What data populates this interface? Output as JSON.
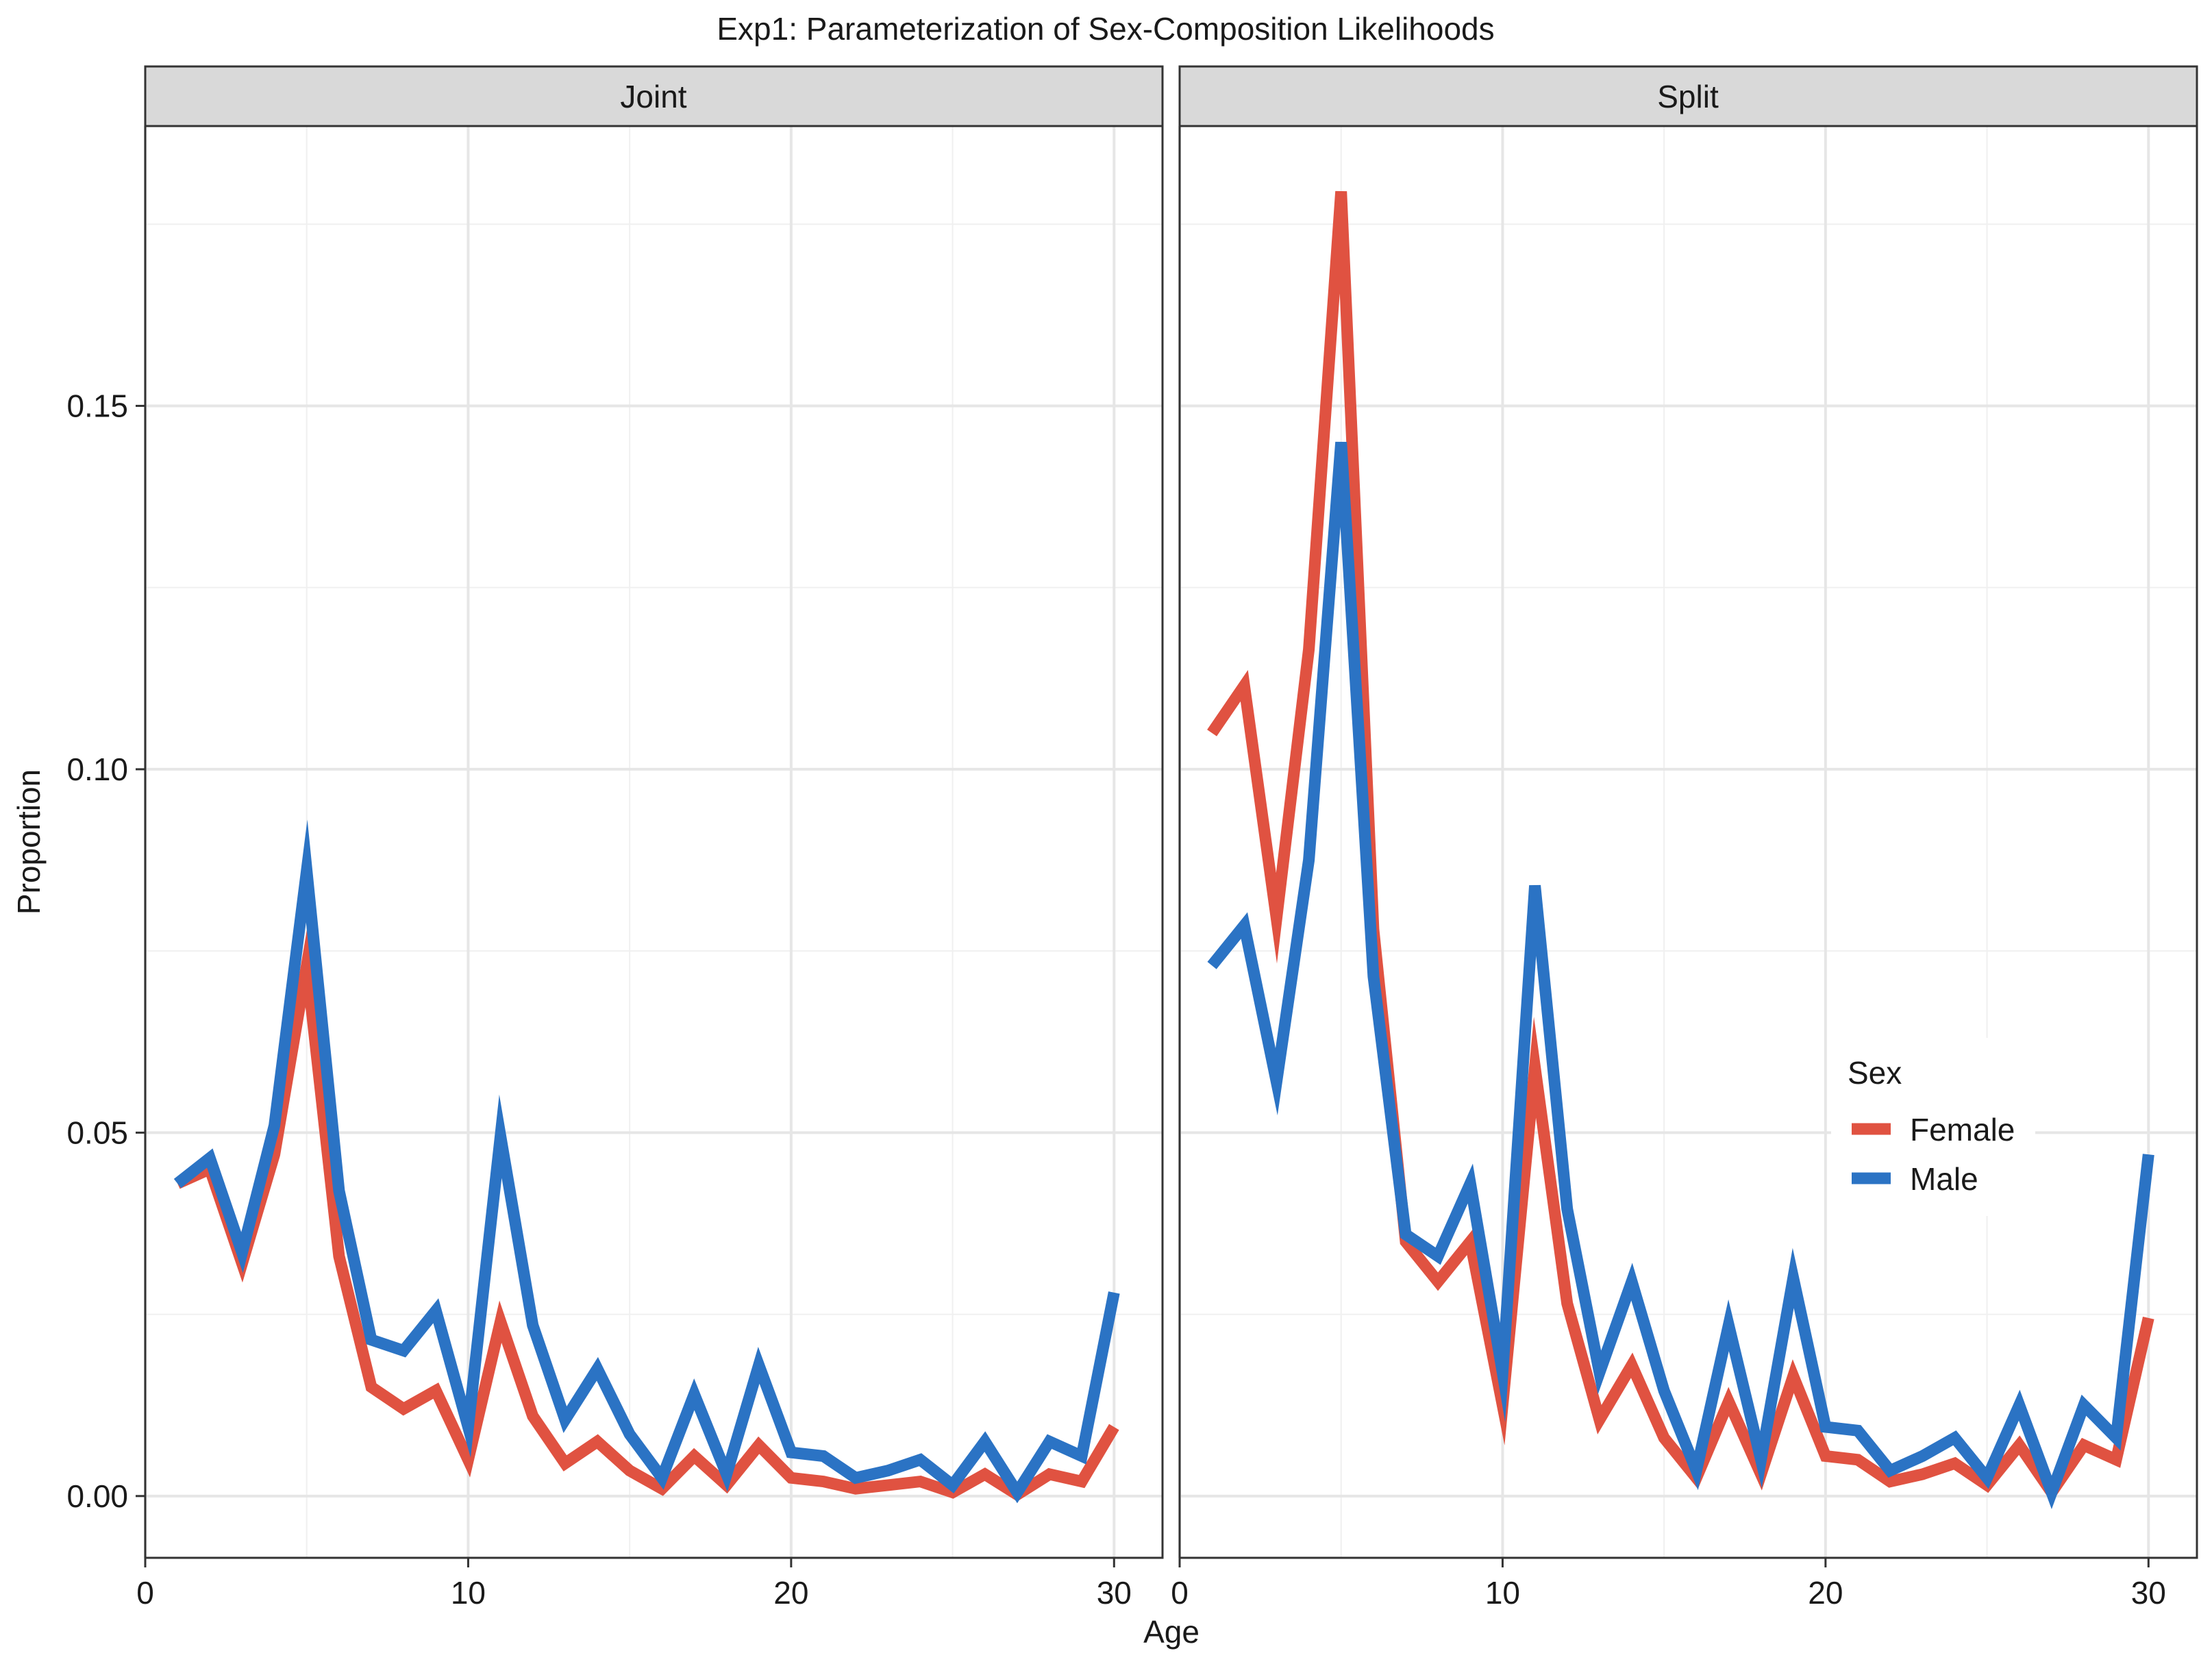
{
  "chart_data": {
    "type": "line",
    "title": "Exp1: Parameterization of Sex-Composition Likelihoods",
    "xlabel": "Age",
    "ylabel": "Proportion",
    "xlim": [
      0,
      31.5
    ],
    "ylim": [
      -0.0085,
      0.1885
    ],
    "x_ticks": [
      0,
      10,
      20,
      30
    ],
    "x_tick_labels": [
      "0",
      "10",
      "20",
      "30"
    ],
    "y_ticks": [
      0.0,
      0.05,
      0.1,
      0.15
    ],
    "y_tick_labels": [
      "0.00",
      "0.05",
      "0.10",
      "0.15"
    ],
    "grid": true,
    "legend": {
      "title": "Sex",
      "placement": "right, inside Split panel",
      "entries": [
        "Female",
        "Male"
      ]
    },
    "series_colors": {
      "Female": "#e05241",
      "Male": "#2b73c4"
    },
    "x": [
      1,
      2,
      3,
      4,
      5,
      6,
      7,
      8,
      9,
      10,
      11,
      12,
      13,
      14,
      15,
      16,
      17,
      18,
      19,
      20,
      21,
      22,
      23,
      24,
      25,
      26,
      27,
      28,
      29,
      30
    ],
    "panels": [
      {
        "strip": "Joint",
        "series": [
          {
            "name": "Female",
            "values": [
              0.043,
              0.045,
              0.032,
              0.047,
              0.073,
              0.033,
              0.015,
              0.012,
              0.0145,
              0.005,
              0.024,
              0.011,
              0.0045,
              0.0075,
              0.0035,
              0.001,
              0.0055,
              0.0015,
              0.007,
              0.0025,
              0.002,
              0.001,
              0.0015,
              0.002,
              0.0005,
              0.003,
              0.0002,
              0.003,
              0.002,
              0.0095
            ]
          },
          {
            "name": "Male",
            "values": [
              0.043,
              0.0465,
              0.0335,
              0.051,
              0.086,
              0.042,
              0.0215,
              0.02,
              0.0255,
              0.0095,
              0.0495,
              0.0235,
              0.0105,
              0.0175,
              0.0085,
              0.0025,
              0.014,
              0.003,
              0.018,
              0.006,
              0.0055,
              0.0025,
              0.0035,
              0.005,
              0.0015,
              0.0075,
              0.0005,
              0.0075,
              0.0055,
              0.028
            ]
          }
        ]
      },
      {
        "strip": "Split",
        "series": [
          {
            "name": "Female",
            "values": [
              0.105,
              0.1115,
              0.0795,
              0.1165,
              0.1795,
              0.078,
              0.035,
              0.0295,
              0.035,
              0.0125,
              0.059,
              0.0265,
              0.0105,
              0.018,
              0.008,
              0.0025,
              0.013,
              0.003,
              0.0165,
              0.0055,
              0.005,
              0.002,
              0.003,
              0.0045,
              0.0015,
              0.007,
              0.0005,
              0.007,
              0.005,
              0.0245
            ]
          },
          {
            "name": "Male",
            "values": [
              0.073,
              0.0785,
              0.057,
              0.0875,
              0.145,
              0.0715,
              0.036,
              0.033,
              0.043,
              0.017,
              0.084,
              0.0395,
              0.017,
              0.0295,
              0.0145,
              0.0035,
              0.0235,
              0.005,
              0.03,
              0.0095,
              0.009,
              0.0035,
              0.0055,
              0.008,
              0.0025,
              0.0125,
              0.0005,
              0.0125,
              0.008,
              0.047
            ]
          }
        ]
      }
    ]
  }
}
